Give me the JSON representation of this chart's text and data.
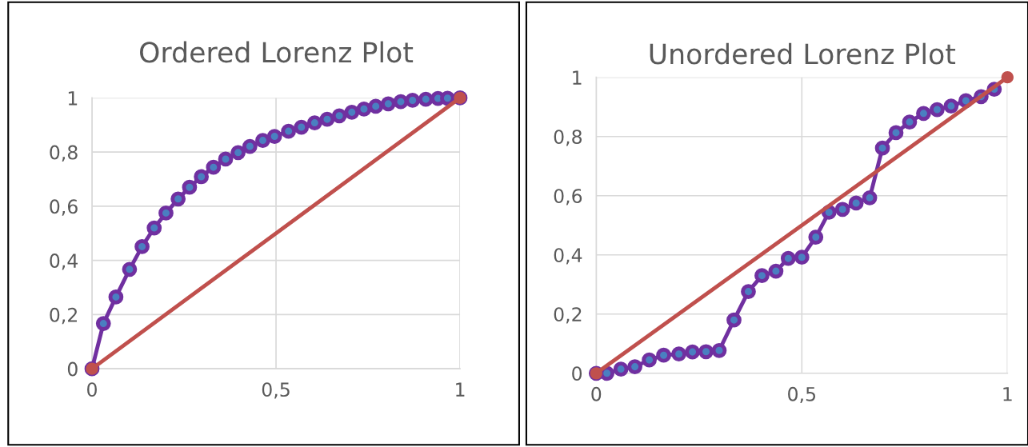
{
  "chart_data": [
    {
      "type": "line",
      "title": "Ordered Lorenz Plot",
      "xlim": [
        0,
        1
      ],
      "ylim": [
        0,
        1
      ],
      "xticks": [
        0,
        {
          "value": 0.5,
          "label": "0,5"
        },
        1
      ],
      "yticks": [
        0,
        {
          "value": 0.2,
          "label": "0,2"
        },
        {
          "value": 0.4,
          "label": "0,4"
        },
        {
          "value": 0.6,
          "label": "0,6"
        },
        {
          "value": 0.8,
          "label": "0,8"
        },
        1
      ],
      "grid": true,
      "legend": false,
      "series": [
        {
          "color": "#7030a0",
          "marker": "circle",
          "x": [
            0,
            0.031,
            0.065,
            0.102,
            0.136,
            0.169,
            0.201,
            0.234,
            0.265,
            0.297,
            0.33,
            0.363,
            0.397,
            0.429,
            0.464,
            0.496,
            0.534,
            0.569,
            0.605,
            0.639,
            0.672,
            0.706,
            0.739,
            0.771,
            0.805,
            0.839,
            0.871,
            0.907,
            0.94,
            0.966,
            1
          ],
          "values": [
            0,
            0.167,
            0.265,
            0.367,
            0.451,
            0.52,
            0.575,
            0.627,
            0.67,
            0.709,
            0.744,
            0.774,
            0.798,
            0.821,
            0.843,
            0.858,
            0.877,
            0.892,
            0.908,
            0.921,
            0.934,
            0.947,
            0.959,
            0.969,
            0.978,
            0.986,
            0.991,
            0.995,
            0.998,
            0.999,
            1
          ]
        },
        {
          "color": "#c0504d",
          "marker": "circle",
          "x": [
            0,
            1
          ],
          "values": [
            0,
            1
          ]
        }
      ]
    },
    {
      "type": "line",
      "title": "Unordered Lorenz Plot",
      "xlim": [
        0,
        1
      ],
      "ylim": [
        0,
        1
      ],
      "xticks": [
        0,
        {
          "value": 0.5,
          "label": "0,5"
        },
        1
      ],
      "yticks": [
        0,
        {
          "value": 0.2,
          "label": "0,2"
        },
        {
          "value": 0.4,
          "label": "0,4"
        },
        {
          "value": 0.6,
          "label": "0,6"
        },
        {
          "value": 0.8,
          "label": "0,8"
        },
        1
      ],
      "grid": true,
      "legend": false,
      "series": [
        {
          "color": "#7030a0",
          "marker": "circle",
          "x": [
            0,
            0.026,
            0.06,
            0.094,
            0.129,
            0.164,
            0.201,
            0.234,
            0.267,
            0.299,
            0.335,
            0.37,
            0.403,
            0.437,
            0.467,
            0.5,
            0.534,
            0.566,
            0.599,
            0.632,
            0.665,
            0.696,
            0.729,
            0.762,
            0.796,
            0.829,
            0.863,
            0.899,
            0.936,
            0.968
          ],
          "values": [
            0,
            0.0,
            0.014,
            0.022,
            0.045,
            0.061,
            0.065,
            0.072,
            0.073,
            0.077,
            0.18,
            0.276,
            0.33,
            0.345,
            0.388,
            0.392,
            0.46,
            0.544,
            0.554,
            0.575,
            0.593,
            0.761,
            0.813,
            0.849,
            0.878,
            0.891,
            0.903,
            0.921,
            0.935,
            0.96
          ]
        },
        {
          "color": "#c0504d",
          "marker": "circle",
          "x": [
            0,
            1
          ],
          "values": [
            0,
            1
          ]
        }
      ]
    }
  ]
}
